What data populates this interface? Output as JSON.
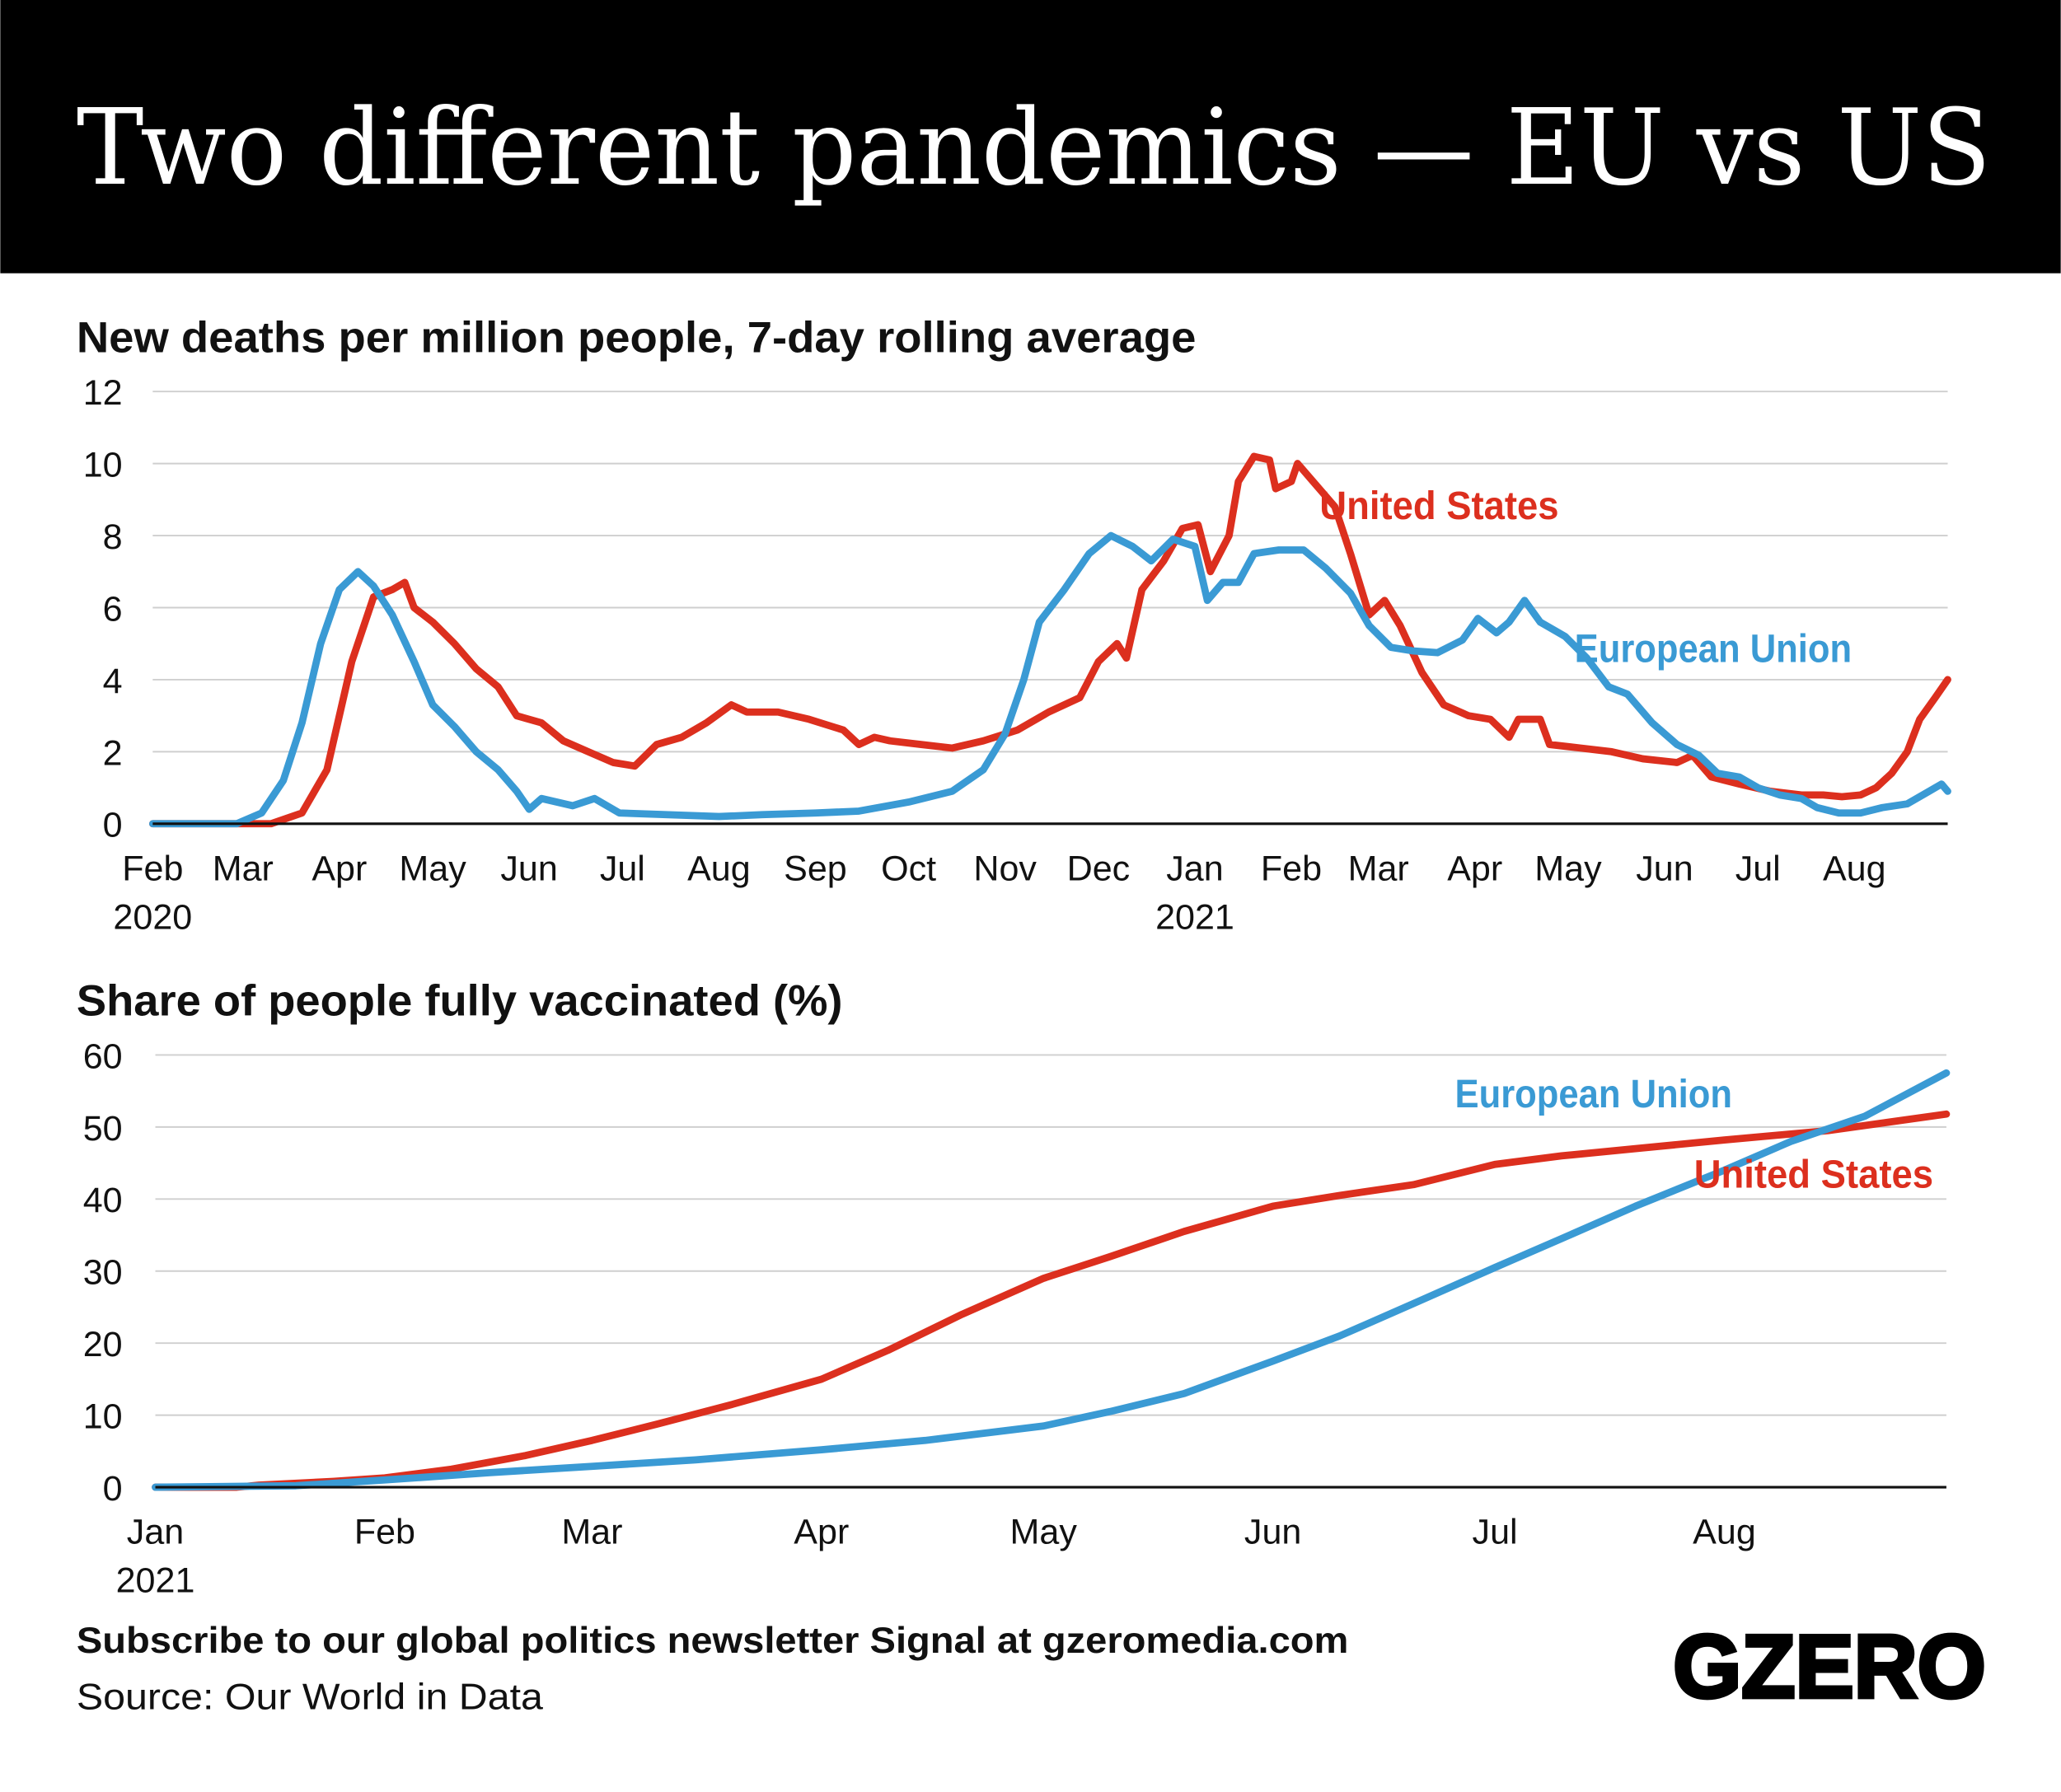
{
  "title": "Two different pandemics — EU vs US",
  "colors": {
    "us": "#dc2f1e",
    "eu": "#3a9ad4",
    "header_bg": "#000000"
  },
  "footer": {
    "subscribe": "Subscribe to our global politics newsletter Signal at gzeromedia.com",
    "source": "Source: Our World in Data",
    "logo": "GZERO"
  },
  "chart_data": [
    {
      "type": "line",
      "title": "New deaths per million people, 7-day rolling average",
      "xlim": [
        "2020-02-01",
        "2021-08-31"
      ],
      "ylim": [
        0,
        12
      ],
      "yticks": [
        0,
        2,
        4,
        6,
        8,
        10,
        12
      ],
      "xticks": [
        {
          "date": "2020-02-01",
          "label": "Feb",
          "sub": "2020"
        },
        {
          "date": "2020-03-01",
          "label": "Mar"
        },
        {
          "date": "2020-04-01",
          "label": "Apr"
        },
        {
          "date": "2020-05-01",
          "label": "May"
        },
        {
          "date": "2020-06-01",
          "label": "Jun"
        },
        {
          "date": "2020-07-01",
          "label": "Jul"
        },
        {
          "date": "2020-08-01",
          "label": "Aug"
        },
        {
          "date": "2020-09-01",
          "label": "Sep"
        },
        {
          "date": "2020-10-01",
          "label": "Oct"
        },
        {
          "date": "2020-11-01",
          "label": "Nov"
        },
        {
          "date": "2020-12-01",
          "label": "Dec"
        },
        {
          "date": "2021-01-01",
          "label": "Jan",
          "sub": "2021"
        },
        {
          "date": "2021-02-01",
          "label": "Feb"
        },
        {
          "date": "2021-03-01",
          "label": "Mar"
        },
        {
          "date": "2021-04-01",
          "label": "Apr"
        },
        {
          "date": "2021-05-01",
          "label": "May"
        },
        {
          "date": "2021-06-01",
          "label": "Jun"
        },
        {
          "date": "2021-07-01",
          "label": "Jul"
        },
        {
          "date": "2021-08-01",
          "label": "Aug"
        }
      ],
      "grid": true,
      "series": [
        {
          "name": "United States",
          "color": "us",
          "points": [
            [
              "2020-02-01",
              0
            ],
            [
              "2020-03-10",
              0
            ],
            [
              "2020-03-20",
              0.3
            ],
            [
              "2020-03-28",
              1.5
            ],
            [
              "2020-04-05",
              4.5
            ],
            [
              "2020-04-12",
              6.3
            ],
            [
              "2020-04-18",
              6.5
            ],
            [
              "2020-04-22",
              6.7
            ],
            [
              "2020-04-25",
              6.0
            ],
            [
              "2020-05-01",
              5.6
            ],
            [
              "2020-05-08",
              5.0
            ],
            [
              "2020-05-15",
              4.3
            ],
            [
              "2020-05-22",
              3.8
            ],
            [
              "2020-05-28",
              3.0
            ],
            [
              "2020-06-05",
              2.8
            ],
            [
              "2020-06-12",
              2.3
            ],
            [
              "2020-06-20",
              2.0
            ],
            [
              "2020-06-28",
              1.7
            ],
            [
              "2020-07-05",
              1.6
            ],
            [
              "2020-07-12",
              2.2
            ],
            [
              "2020-07-20",
              2.4
            ],
            [
              "2020-07-28",
              2.8
            ],
            [
              "2020-08-05",
              3.3
            ],
            [
              "2020-08-10",
              3.1
            ],
            [
              "2020-08-20",
              3.1
            ],
            [
              "2020-08-30",
              2.9
            ],
            [
              "2020-09-10",
              2.6
            ],
            [
              "2020-09-15",
              2.2
            ],
            [
              "2020-09-20",
              2.4
            ],
            [
              "2020-09-25",
              2.3
            ],
            [
              "2020-10-05",
              2.2
            ],
            [
              "2020-10-15",
              2.1
            ],
            [
              "2020-10-25",
              2.3
            ],
            [
              "2020-11-05",
              2.6
            ],
            [
              "2020-11-15",
              3.1
            ],
            [
              "2020-11-25",
              3.5
            ],
            [
              "2020-12-01",
              4.5
            ],
            [
              "2020-12-07",
              5.0
            ],
            [
              "2020-12-10",
              4.6
            ],
            [
              "2020-12-15",
              6.5
            ],
            [
              "2020-12-22",
              7.3
            ],
            [
              "2020-12-28",
              8.2
            ],
            [
              "2021-01-02",
              8.3
            ],
            [
              "2021-01-06",
              7.0
            ],
            [
              "2021-01-12",
              8.0
            ],
            [
              "2021-01-15",
              9.5
            ],
            [
              "2021-01-20",
              10.2
            ],
            [
              "2021-01-25",
              10.1
            ],
            [
              "2021-01-27",
              9.3
            ],
            [
              "2021-02-01",
              9.5
            ],
            [
              "2021-02-03",
              10.0
            ],
            [
              "2021-02-08",
              9.5
            ],
            [
              "2021-02-15",
              8.8
            ],
            [
              "2021-02-20",
              7.5
            ],
            [
              "2021-02-26",
              5.8
            ],
            [
              "2021-03-03",
              6.2
            ],
            [
              "2021-03-08",
              5.5
            ],
            [
              "2021-03-15",
              4.2
            ],
            [
              "2021-03-22",
              3.3
            ],
            [
              "2021-03-30",
              3.0
            ],
            [
              "2021-04-06",
              2.9
            ],
            [
              "2021-04-12",
              2.4
            ],
            [
              "2021-04-15",
              2.9
            ],
            [
              "2021-04-22",
              2.9
            ],
            [
              "2021-04-25",
              2.2
            ],
            [
              "2021-05-05",
              2.1
            ],
            [
              "2021-05-15",
              2.0
            ],
            [
              "2021-05-25",
              1.8
            ],
            [
              "2021-06-05",
              1.7
            ],
            [
              "2021-06-10",
              1.9
            ],
            [
              "2021-06-16",
              1.3
            ],
            [
              "2021-06-25",
              1.1
            ],
            [
              "2021-07-05",
              0.9
            ],
            [
              "2021-07-15",
              0.8
            ],
            [
              "2021-07-22",
              0.8
            ],
            [
              "2021-07-28",
              0.75
            ],
            [
              "2021-08-03",
              0.8
            ],
            [
              "2021-08-08",
              1.0
            ],
            [
              "2021-08-13",
              1.4
            ],
            [
              "2021-08-18",
              2.0
            ],
            [
              "2021-08-22",
              2.9
            ],
            [
              "2021-08-27",
              3.5
            ],
            [
              "2021-08-31",
              4.0
            ]
          ]
        },
        {
          "name": "European Union",
          "color": "eu",
          "points": [
            [
              "2020-02-01",
              0
            ],
            [
              "2020-02-28",
              0
            ],
            [
              "2020-03-07",
              0.3
            ],
            [
              "2020-03-14",
              1.2
            ],
            [
              "2020-03-20",
              2.8
            ],
            [
              "2020-03-26",
              5.0
            ],
            [
              "2020-04-01",
              6.5
            ],
            [
              "2020-04-07",
              7.0
            ],
            [
              "2020-04-12",
              6.6
            ],
            [
              "2020-04-18",
              5.8
            ],
            [
              "2020-04-25",
              4.5
            ],
            [
              "2020-05-01",
              3.3
            ],
            [
              "2020-05-08",
              2.7
            ],
            [
              "2020-05-15",
              2.0
            ],
            [
              "2020-05-22",
              1.5
            ],
            [
              "2020-05-28",
              0.9
            ],
            [
              "2020-06-01",
              0.4
            ],
            [
              "2020-06-05",
              0.7
            ],
            [
              "2020-06-15",
              0.5
            ],
            [
              "2020-06-22",
              0.7
            ],
            [
              "2020-06-30",
              0.3
            ],
            [
              "2020-07-15",
              0.25
            ],
            [
              "2020-08-01",
              0.2
            ],
            [
              "2020-08-15",
              0.25
            ],
            [
              "2020-09-01",
              0.3
            ],
            [
              "2020-09-15",
              0.35
            ],
            [
              "2020-10-01",
              0.6
            ],
            [
              "2020-10-15",
              0.9
            ],
            [
              "2020-10-25",
              1.5
            ],
            [
              "2020-11-01",
              2.5
            ],
            [
              "2020-11-07",
              4.0
            ],
            [
              "2020-11-12",
              5.6
            ],
            [
              "2020-11-20",
              6.5
            ],
            [
              "2020-11-28",
              7.5
            ],
            [
              "2020-12-05",
              8.0
            ],
            [
              "2020-12-12",
              7.7
            ],
            [
              "2020-12-18",
              7.3
            ],
            [
              "2020-12-25",
              7.9
            ],
            [
              "2021-01-01",
              7.7
            ],
            [
              "2021-01-05",
              6.2
            ],
            [
              "2021-01-10",
              6.7
            ],
            [
              "2021-01-15",
              6.7
            ],
            [
              "2021-01-20",
              7.5
            ],
            [
              "2021-01-28",
              7.6
            ],
            [
              "2021-02-05",
              7.6
            ],
            [
              "2021-02-12",
              7.1
            ],
            [
              "2021-02-20",
              6.4
            ],
            [
              "2021-02-26",
              5.5
            ],
            [
              "2021-03-05",
              4.9
            ],
            [
              "2021-03-12",
              4.8
            ],
            [
              "2021-03-20",
              4.75
            ],
            [
              "2021-03-28",
              5.1
            ],
            [
              "2021-04-02",
              5.7
            ],
            [
              "2021-04-08",
              5.3
            ],
            [
              "2021-04-12",
              5.6
            ],
            [
              "2021-04-17",
              6.2
            ],
            [
              "2021-04-22",
              5.6
            ],
            [
              "2021-04-30",
              5.2
            ],
            [
              "2021-05-07",
              4.6
            ],
            [
              "2021-05-14",
              3.8
            ],
            [
              "2021-05-20",
              3.6
            ],
            [
              "2021-05-28",
              2.8
            ],
            [
              "2021-06-05",
              2.2
            ],
            [
              "2021-06-12",
              1.9
            ],
            [
              "2021-06-18",
              1.4
            ],
            [
              "2021-06-25",
              1.3
            ],
            [
              "2021-07-01",
              1.0
            ],
            [
              "2021-07-08",
              0.8
            ],
            [
              "2021-07-15",
              0.7
            ],
            [
              "2021-07-20",
              0.45
            ],
            [
              "2021-07-27",
              0.3
            ],
            [
              "2021-08-03",
              0.3
            ],
            [
              "2021-08-10",
              0.45
            ],
            [
              "2021-08-18",
              0.55
            ],
            [
              "2021-08-25",
              0.9
            ],
            [
              "2021-08-29",
              1.1
            ],
            [
              "2021-08-31",
              0.9
            ]
          ]
        }
      ]
    },
    {
      "type": "line",
      "title": "Share of people fully vaccinated (%)",
      "xlim": [
        "2021-01-01",
        "2021-08-31"
      ],
      "ylim": [
        0,
        60
      ],
      "yticks": [
        0,
        10,
        20,
        30,
        40,
        50,
        60
      ],
      "xticks": [
        {
          "date": "2021-01-01",
          "label": "Jan",
          "sub": "2021"
        },
        {
          "date": "2021-02-01",
          "label": "Feb"
        },
        {
          "date": "2021-03-01",
          "label": "Mar"
        },
        {
          "date": "2021-04-01",
          "label": "Apr"
        },
        {
          "date": "2021-05-01",
          "label": "May"
        },
        {
          "date": "2021-06-01",
          "label": "Jun"
        },
        {
          "date": "2021-07-01",
          "label": "Jul"
        },
        {
          "date": "2021-08-01",
          "label": "Aug"
        }
      ],
      "grid": true,
      "series": [
        {
          "name": "United States",
          "color": "us",
          "points": [
            [
              "2021-01-01",
              0
            ],
            [
              "2021-01-12",
              0
            ],
            [
              "2021-01-15",
              0.3
            ],
            [
              "2021-01-25",
              0.8
            ],
            [
              "2021-02-01",
              1.3
            ],
            [
              "2021-02-10",
              2.5
            ],
            [
              "2021-02-20",
              4.4
            ],
            [
              "2021-03-01",
              6.5
            ],
            [
              "2021-03-10",
              8.8
            ],
            [
              "2021-03-20",
              11.5
            ],
            [
              "2021-04-01",
              15.0
            ],
            [
              "2021-04-10",
              19
            ],
            [
              "2021-04-20",
              24
            ],
            [
              "2021-05-01",
              29
            ],
            [
              "2021-05-10",
              32
            ],
            [
              "2021-05-20",
              35.5
            ],
            [
              "2021-06-01",
              39
            ],
            [
              "2021-06-10",
              40.5
            ],
            [
              "2021-06-20",
              42
            ],
            [
              "2021-07-01",
              44.8
            ],
            [
              "2021-07-10",
              46
            ],
            [
              "2021-07-20",
              47
            ],
            [
              "2021-08-01",
              48.2
            ],
            [
              "2021-08-15",
              49.5
            ],
            [
              "2021-08-31",
              51.8
            ]
          ]
        },
        {
          "name": "European Union",
          "color": "eu",
          "points": [
            [
              "2021-01-01",
              0
            ],
            [
              "2021-01-20",
              0.2
            ],
            [
              "2021-02-01",
              1
            ],
            [
              "2021-02-15",
              2
            ],
            [
              "2021-03-01",
              2.9
            ],
            [
              "2021-03-15",
              3.8
            ],
            [
              "2021-04-01",
              5.2
            ],
            [
              "2021-04-15",
              6.5
            ],
            [
              "2021-05-01",
              8.5
            ],
            [
              "2021-05-10",
              10.5
            ],
            [
              "2021-05-20",
              13
            ],
            [
              "2021-06-01",
              17.5
            ],
            [
              "2021-06-10",
              21
            ],
            [
              "2021-06-20",
              25.5
            ],
            [
              "2021-07-01",
              30.5
            ],
            [
              "2021-07-10",
              34.5
            ],
            [
              "2021-07-20",
              39
            ],
            [
              "2021-08-01",
              44
            ],
            [
              "2021-08-10",
              48
            ],
            [
              "2021-08-20",
              51.5
            ],
            [
              "2021-08-31",
              57.5
            ]
          ]
        }
      ]
    }
  ]
}
